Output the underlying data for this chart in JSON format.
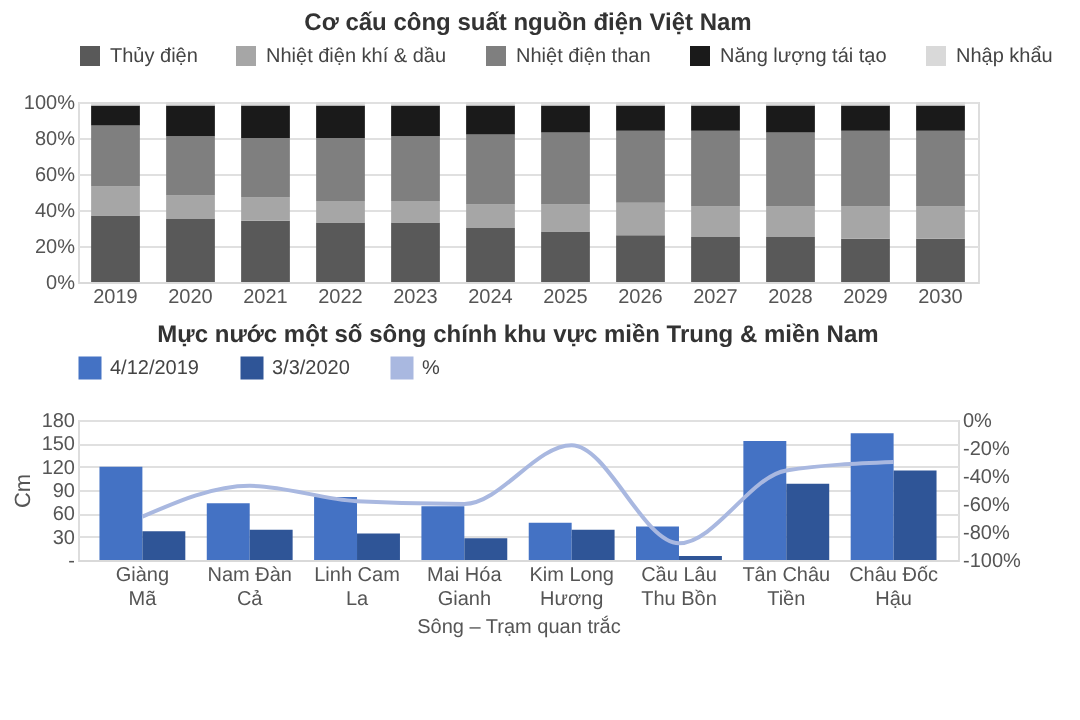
{
  "chart_data": [
    {
      "type": "bar",
      "title": "Cơ cấu công suất nguồn điện Việt Nam",
      "stacked": true,
      "legend": "top",
      "grid": "y",
      "categories": [
        "2019",
        "2020",
        "2021",
        "2022",
        "2023",
        "2024",
        "2025",
        "2026",
        "2027",
        "2028",
        "2029",
        "2030"
      ],
      "series": [
        {
          "name": "Thủy điện",
          "color": "#595959",
          "values": [
            37,
            35,
            34,
            33,
            33,
            30,
            28,
            26,
            25,
            25,
            24,
            24
          ]
        },
        {
          "name": "Nhiệt điện khí & dầu",
          "color": "#a6a6a6",
          "values": [
            16,
            13,
            13,
            12,
            12,
            13,
            15,
            18,
            17,
            17,
            18,
            18
          ]
        },
        {
          "name": "Nhiệt điện than",
          "color": "#7f7f7f",
          "values": [
            34,
            33,
            33,
            35,
            36,
            39,
            40,
            40,
            42,
            41,
            42,
            42
          ]
        },
        {
          "name": "Năng lượng tái tạo",
          "color": "#1a1a1a",
          "values": [
            11,
            17,
            18,
            18,
            17,
            16,
            15,
            14,
            14,
            15,
            14,
            14
          ]
        },
        {
          "name": "Nhập khẩu",
          "color": "#d9d9d9",
          "values": [
            2,
            2,
            2,
            2,
            2,
            2,
            2,
            2,
            2,
            2,
            2,
            2
          ]
        }
      ],
      "ylim": [
        0,
        100
      ],
      "yticks": [
        {
          "value": 0,
          "label": "0%"
        },
        {
          "value": 20,
          "label": "20%"
        },
        {
          "value": 40,
          "label": "40%"
        },
        {
          "value": 60,
          "label": "60%"
        },
        {
          "value": 80,
          "label": "80%"
        },
        {
          "value": 100,
          "label": "100%"
        }
      ]
    },
    {
      "type": "bar",
      "title": "Mực nước một số sông chính khu vực miền Trung & miền Nam",
      "legend": "top",
      "grid": "y",
      "xlabel": "Sông – Trạm quan trắc",
      "ylabel": "Cm",
      "categories": [
        "Giàng\nMã",
        "Nam Đàn\nCả",
        "Linh Cam\nLa",
        "Mai Hóa\nGianh",
        "Kim Long\nHương",
        "Cầu Lâu\nThu Bồn",
        "Tân Châu\nTiền",
        "Châu Đốc\nHậu"
      ],
      "series": [
        {
          "name": "4/12/2019",
          "color": "#4472c4",
          "values": [
            120,
            73,
            81,
            69,
            48,
            43,
            153,
            163
          ]
        },
        {
          "name": "3/3/2020",
          "color": "#2f5597",
          "values": [
            37,
            39,
            34,
            28,
            39,
            5,
            98,
            115
          ]
        },
        {
          "name": "%",
          "type": "line",
          "axis": "y2",
          "color": "#a9b8e0",
          "values": [
            -69,
            -47,
            -58,
            -60,
            -18,
            -88,
            -36,
            -30
          ]
        }
      ],
      "ylim": [
        0,
        180
      ],
      "yticks": [
        {
          "value": 0,
          "label": "-"
        },
        30,
        60,
        90,
        120,
        150,
        180
      ],
      "y2lim": [
        -100,
        0
      ],
      "y2ticks": [
        {
          "value": -100,
          "label": "-100%"
        },
        {
          "value": -80,
          "label": "-80%"
        },
        {
          "value": -60,
          "label": "-60%"
        },
        {
          "value": -40,
          "label": "-40%"
        },
        {
          "value": -20,
          "label": "-20%"
        },
        {
          "value": 0,
          "label": "0%"
        }
      ]
    }
  ]
}
